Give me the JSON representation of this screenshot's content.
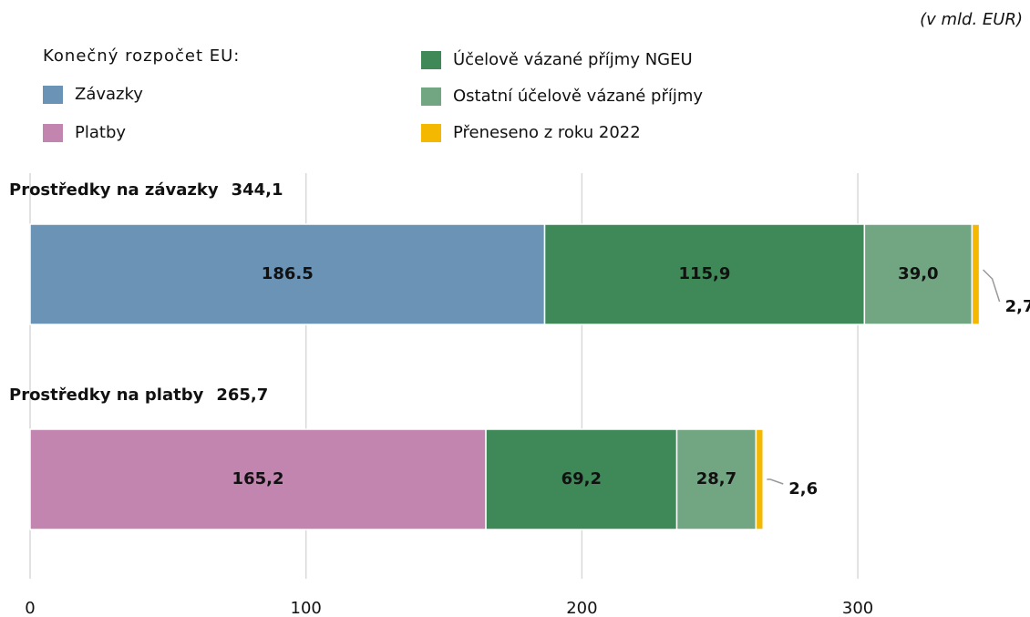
{
  "chart_data": {
    "type": "stacked_barh",
    "unit_note": "(v mld. EUR)",
    "legend_title": "Konečný rozpočet EU:",
    "categories": [
      "Prostředky na závazky",
      "Prostředky na platby"
    ],
    "totals": [
      344.1,
      265.7
    ],
    "total_labels": [
      "344,1",
      "265,7"
    ],
    "series": [
      {
        "name": "Závazky",
        "color": "#6b93b5",
        "label_color": "#111111",
        "values": [
          186.5,
          null
        ],
        "value_labels": [
          "186.5",
          null
        ]
      },
      {
        "name": "Platby",
        "color": "#c285b0",
        "label_color": "#111111",
        "values": [
          null,
          165.2
        ],
        "value_labels": [
          null,
          "165,2"
        ]
      },
      {
        "name": "Účelově vázané příjmy NGEU",
        "color": "#3f8858",
        "label_color": "#ffffff",
        "values": [
          115.9,
          69.2
        ],
        "value_labels": [
          "115,9",
          "69,2"
        ]
      },
      {
        "name": "Ostatní účelově vázané příjmy",
        "color": "#72a683",
        "label_color": "#ffffff",
        "values": [
          39.0,
          28.7
        ],
        "value_labels": [
          "39,0",
          "28,7"
        ]
      },
      {
        "name": "Přeneseno z roku 2022",
        "color": "#f5b800",
        "label_color": "#111111",
        "values": [
          2.7,
          2.6
        ],
        "value_labels": [
          "2,7",
          "2,6"
        ]
      }
    ],
    "xlim": [
      0,
      360
    ],
    "xticks": [
      0,
      100,
      200,
      300
    ],
    "grid": true
  }
}
